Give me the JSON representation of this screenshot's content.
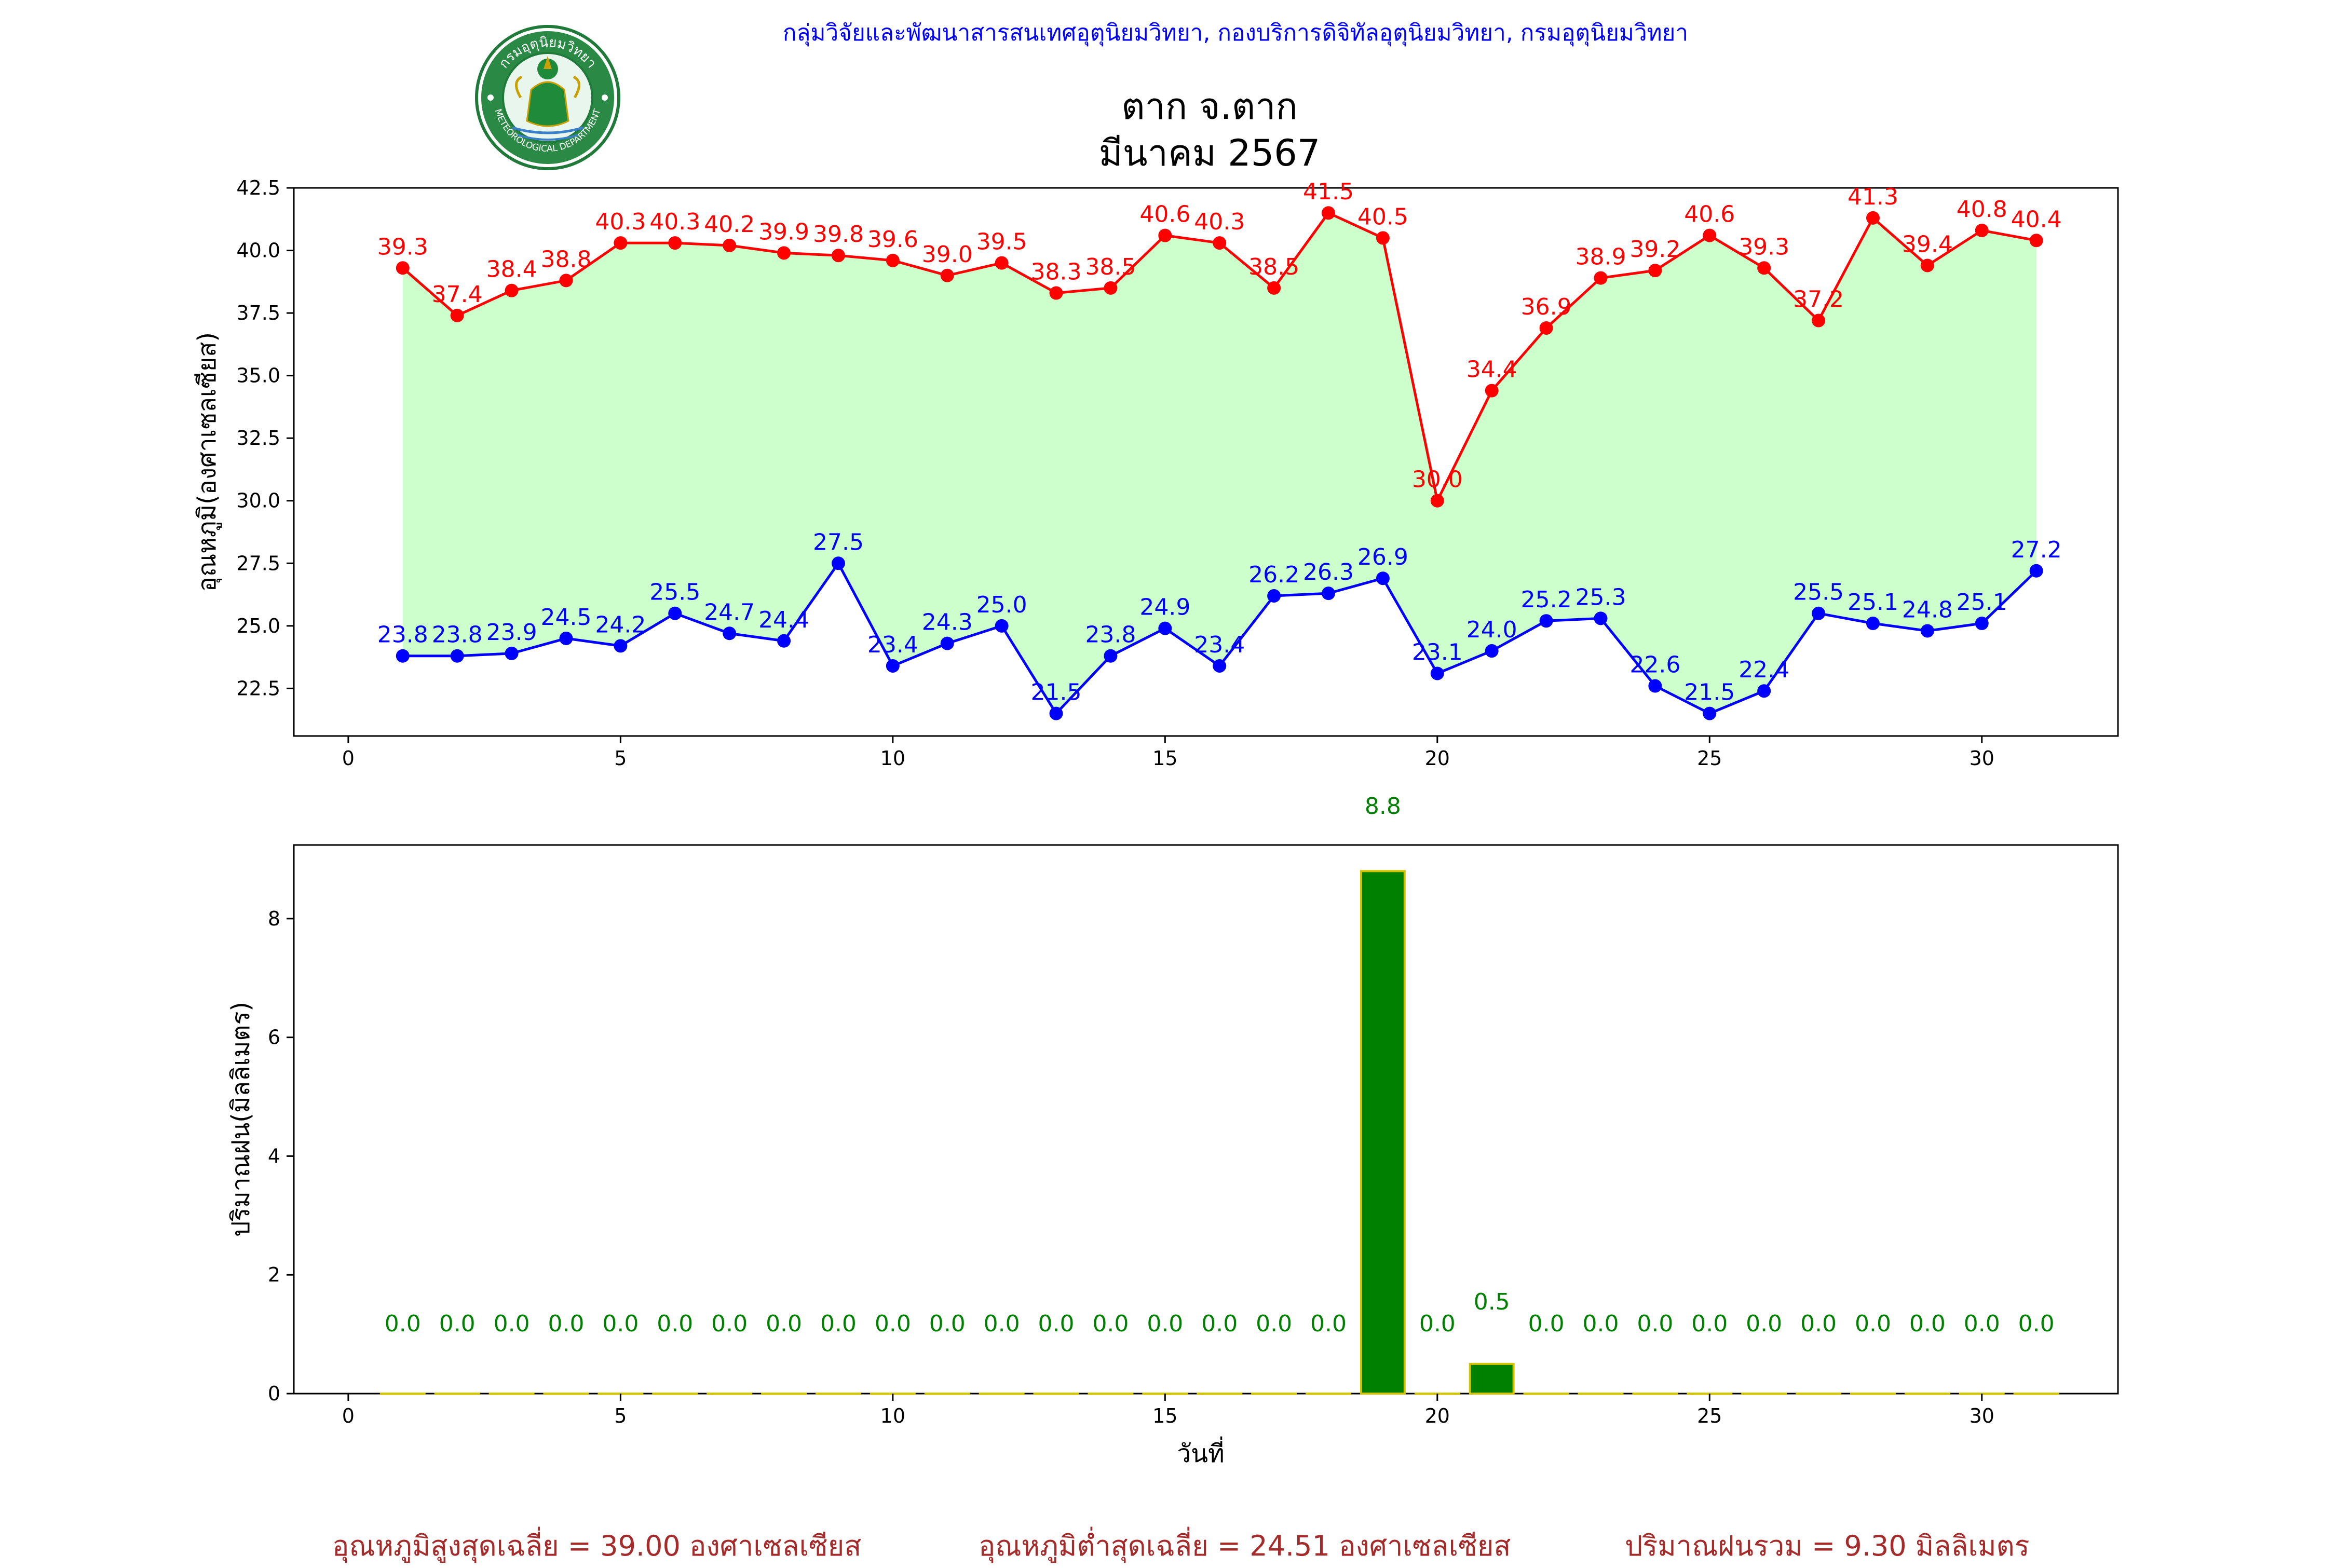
{
  "header": {
    "organization": "กลุ่มวิจัยและพัฒนาสารสนเทศอุตุนิยมวิทยา, กองบริการดิจิทัลอุตุนิยมวิทยา, กรมอุตุนิยมวิทยา",
    "title_line1": "ตาก จ.ตาก",
    "title_line2": "มีนาคม 2567",
    "logo_text_top": "กรมอุตุนิยมวิทยา",
    "logo_text_bottom": "METEOROLOGICAL DEPARTMENT"
  },
  "colors": {
    "max_temp": "#ff0000",
    "min_temp": "#0000ff",
    "fill": "#ccffcc",
    "rain_bar": "#008000",
    "rain_edge": "#d4c400",
    "summary": "#a52a2a"
  },
  "chart_data": [
    {
      "type": "line",
      "ylabel": "อุณหภูมิ(องศาเซลเซียส)",
      "xlim": [
        -1,
        32.5
      ],
      "ylim": [
        20.6,
        42.5
      ],
      "xticks": [
        0,
        5,
        10,
        15,
        20,
        25,
        30
      ],
      "yticks": [
        22.5,
        25.0,
        27.5,
        30.0,
        32.5,
        35.0,
        37.5,
        40.0,
        42.5
      ],
      "x": [
        1,
        2,
        3,
        4,
        5,
        6,
        7,
        8,
        9,
        10,
        11,
        12,
        13,
        14,
        15,
        16,
        17,
        18,
        19,
        20,
        21,
        22,
        23,
        24,
        25,
        26,
        27,
        28,
        29,
        30,
        31
      ],
      "series": [
        {
          "values": [
            39.3,
            37.4,
            38.4,
            38.8,
            40.3,
            40.3,
            40.2,
            39.9,
            39.8,
            39.6,
            39.0,
            39.5,
            38.3,
            38.5,
            40.6,
            40.3,
            38.5,
            41.5,
            40.5,
            30.0,
            34.4,
            36.9,
            38.9,
            39.2,
            40.6,
            39.3,
            37.2,
            41.3,
            39.4,
            40.8,
            40.4
          ]
        },
        {
          "values": [
            23.8,
            23.8,
            23.9,
            24.5,
            24.2,
            25.5,
            24.7,
            24.4,
            27.5,
            23.4,
            24.3,
            25.0,
            21.5,
            23.8,
            24.9,
            23.4,
            26.2,
            26.3,
            26.9,
            23.1,
            24.0,
            25.2,
            25.3,
            22.6,
            21.5,
            22.4,
            25.5,
            25.1,
            24.8,
            25.1,
            27.2
          ]
        }
      ]
    },
    {
      "type": "bar",
      "xlabel": "วันที่",
      "ylabel": "ปริมาณฝน(มิลลิเมตร)",
      "xlim": [
        -1,
        32.5
      ],
      "ylim": [
        0,
        9.24
      ],
      "xticks": [
        0,
        5,
        10,
        15,
        20,
        25,
        30
      ],
      "yticks": [
        0,
        2,
        4,
        6,
        8
      ],
      "x": [
        1,
        2,
        3,
        4,
        5,
        6,
        7,
        8,
        9,
        10,
        11,
        12,
        13,
        14,
        15,
        16,
        17,
        18,
        19,
        20,
        21,
        22,
        23,
        24,
        25,
        26,
        27,
        28,
        29,
        30,
        31
      ],
      "values": [
        0.0,
        0.0,
        0.0,
        0.0,
        0.0,
        0.0,
        0.0,
        0.0,
        0.0,
        0.0,
        0.0,
        0.0,
        0.0,
        0.0,
        0.0,
        0.0,
        0.0,
        0.0,
        8.8,
        0.0,
        0.5,
        0.0,
        0.0,
        0.0,
        0.0,
        0.0,
        0.0,
        0.0,
        0.0,
        0.0,
        0.0
      ]
    }
  ],
  "summary": {
    "avg_max": "อุณหภูมิสูงสุดเฉลี่ย = 39.00 องศาเซลเซียส",
    "avg_min": "อุณหภูมิต่ำสุดเฉลี่ย = 24.51 องศาเซลเซียส",
    "total_rain": "ปริมาณฝนรวม = 9.30 มิลลิเมตร"
  }
}
